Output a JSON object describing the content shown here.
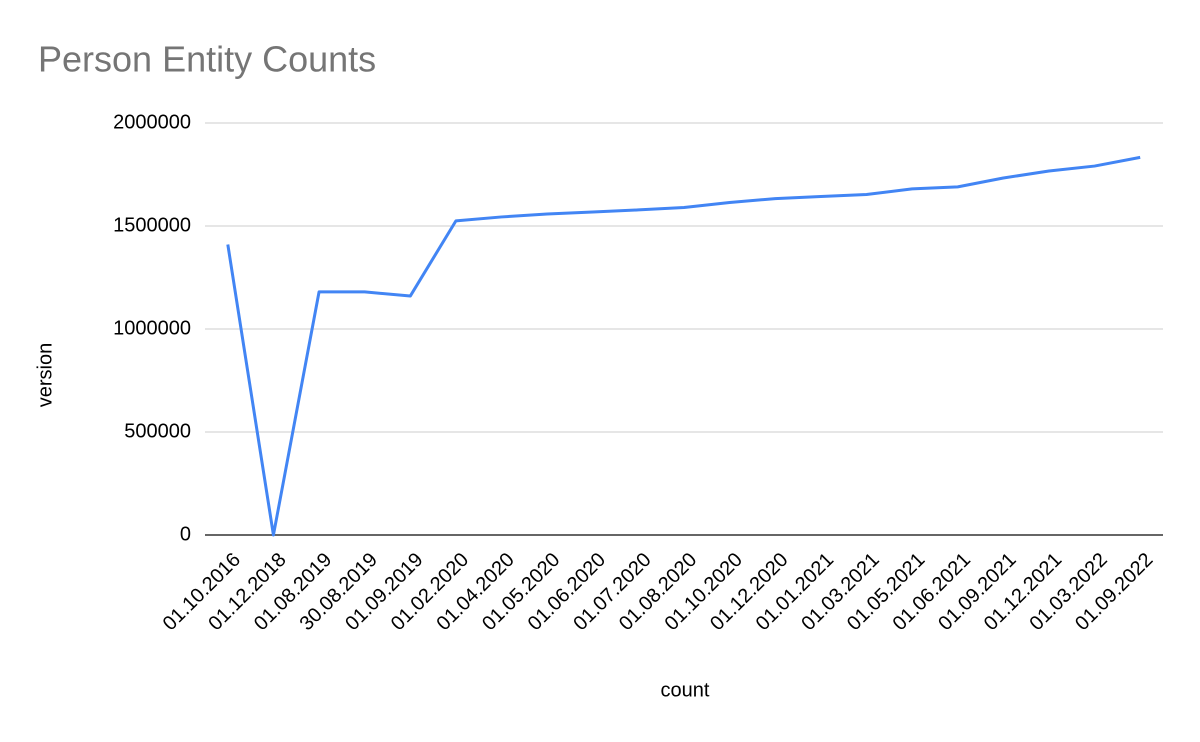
{
  "chart_data": {
    "type": "line",
    "title": "Person Entity Counts",
    "x_label": "count",
    "y_label": "version",
    "categories": [
      "01.10.2016",
      "01.12.2018",
      "01.08.2019",
      "30.08.2019",
      "01.09.2019",
      "01.02.2020",
      "01.04.2020",
      "01.05.2020",
      "01.06.2020",
      "01.07.2020",
      "01.08.2020",
      "01.10.2020",
      "01.12.2020",
      "01.01.2021",
      "01.03.2021",
      "01.05.2021",
      "01.06.2021",
      "01.09.2021",
      "01.12.2021",
      "01.03.2022",
      "01.09.2022"
    ],
    "values": [
      1410000,
      0,
      1180000,
      1180000,
      1160000,
      1525000,
      1544000,
      1558000,
      1568000,
      1578000,
      1590000,
      1614000,
      1633000,
      1643000,
      1653000,
      1680000,
      1690000,
      1733000,
      1767000,
      1791000,
      1833000
    ],
    "color": "#4285f4",
    "ylim": [
      0,
      2000000
    ],
    "yticks": [
      0,
      500000,
      1000000,
      1500000,
      2000000
    ],
    "grid": true
  }
}
